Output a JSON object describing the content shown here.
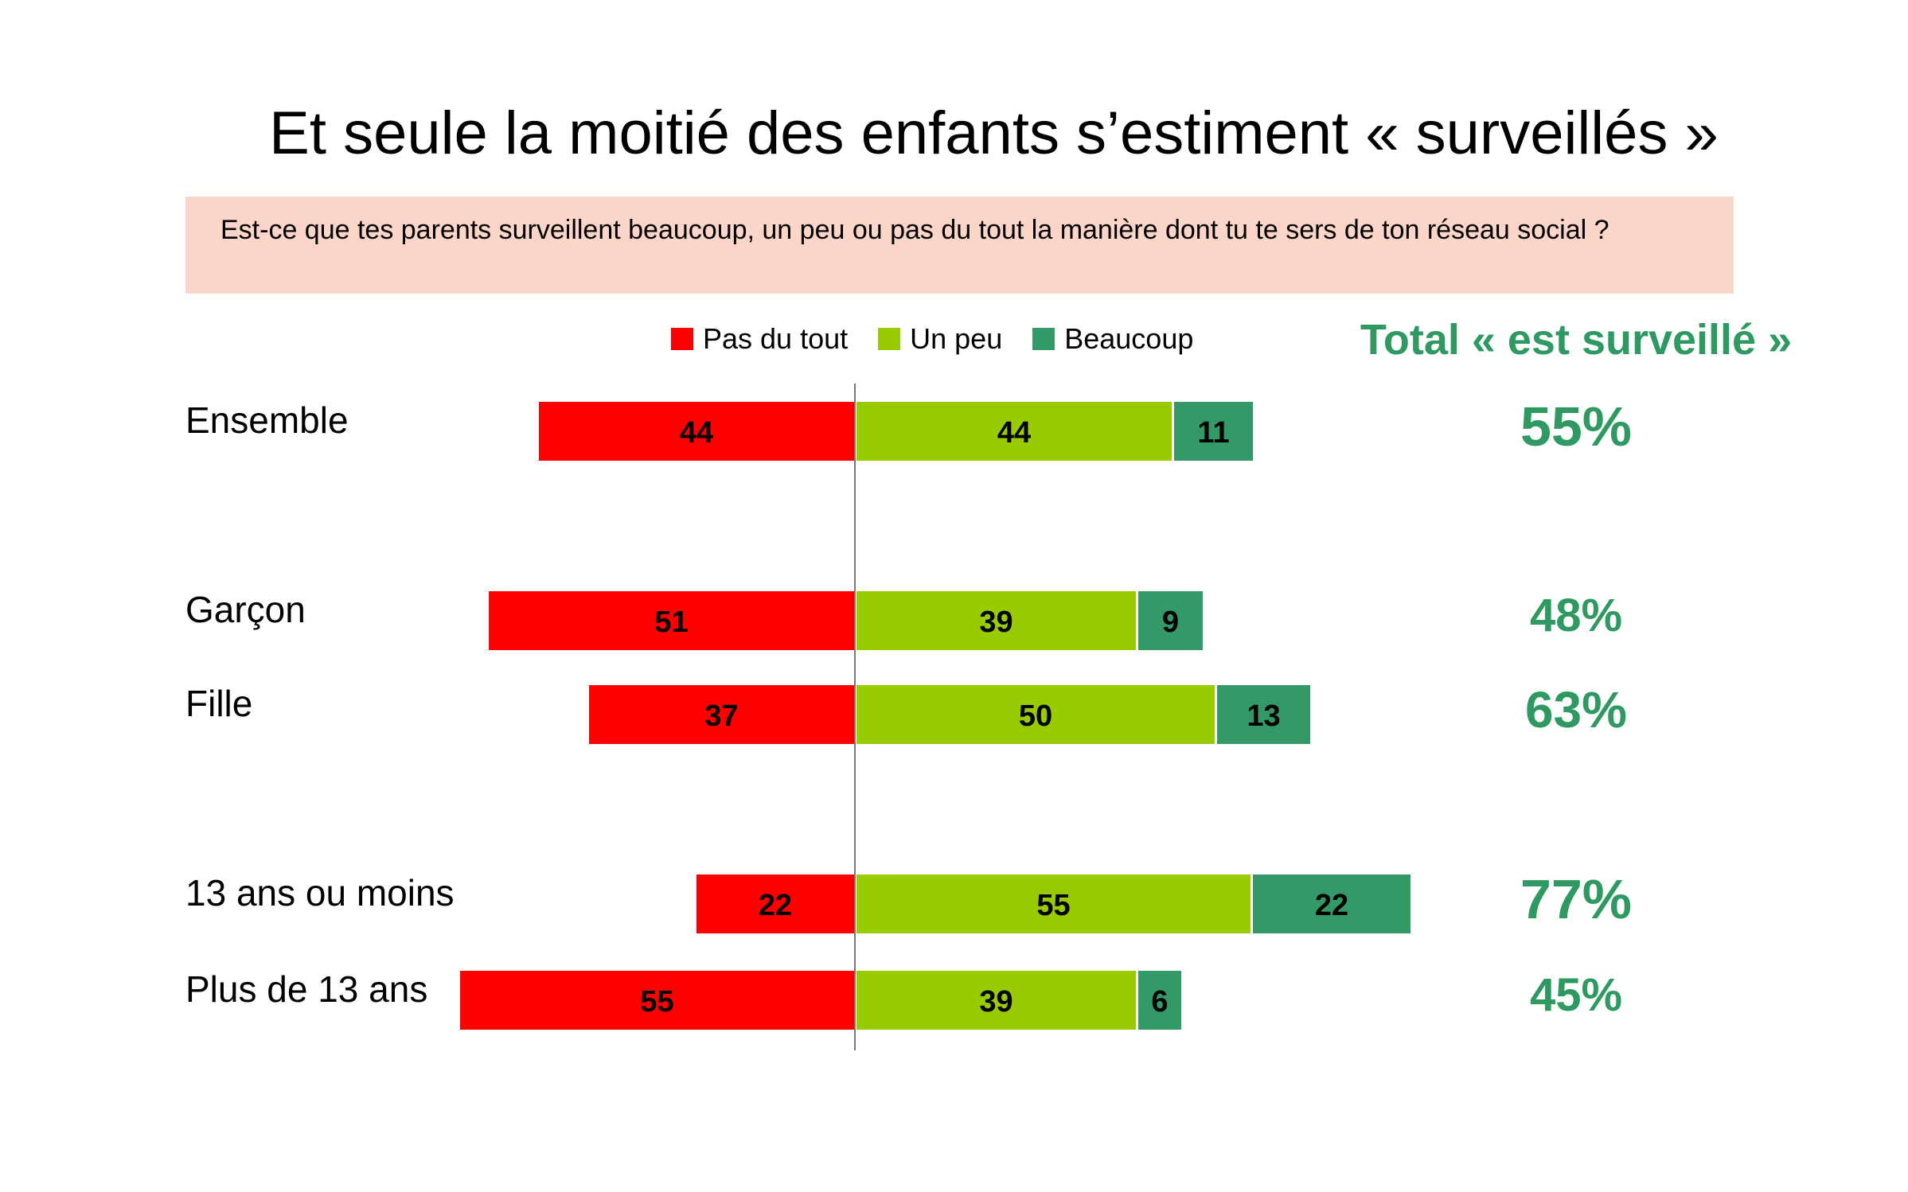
{
  "title": "Et seule la moitié des enfants s’estiment « surveillés »",
  "question": "Est-ce que tes parents surveillent beaucoup, un peu ou pas du tout la manière dont tu te sers de ton réseau social ?",
  "total_header": "Total « est surveillé »",
  "colors": {
    "pas_du_tout": "#ff0000",
    "un_peu": "#99cc00",
    "beaucoup": "#339966",
    "total": "#2e9a62",
    "question_bg": "#fbd5c8"
  },
  "chart_data": {
    "type": "bar",
    "orientation": "horizontal-diverging",
    "categories": [
      "Ensemble",
      "Garçon",
      "Fille",
      "13 ans ou moins",
      "Plus de 13 ans"
    ],
    "series": [
      {
        "name": "Pas du tout",
        "values": [
          44,
          51,
          37,
          22,
          55
        ],
        "direction": "left"
      },
      {
        "name": "Un peu",
        "values": [
          44,
          39,
          50,
          55,
          39
        ],
        "direction": "right"
      },
      {
        "name": "Beaucoup",
        "values": [
          11,
          9,
          13,
          22,
          6
        ],
        "direction": "right"
      }
    ],
    "totals": [
      "55%",
      "48%",
      "63%",
      "77%",
      "45%"
    ],
    "legend_position": "top"
  }
}
